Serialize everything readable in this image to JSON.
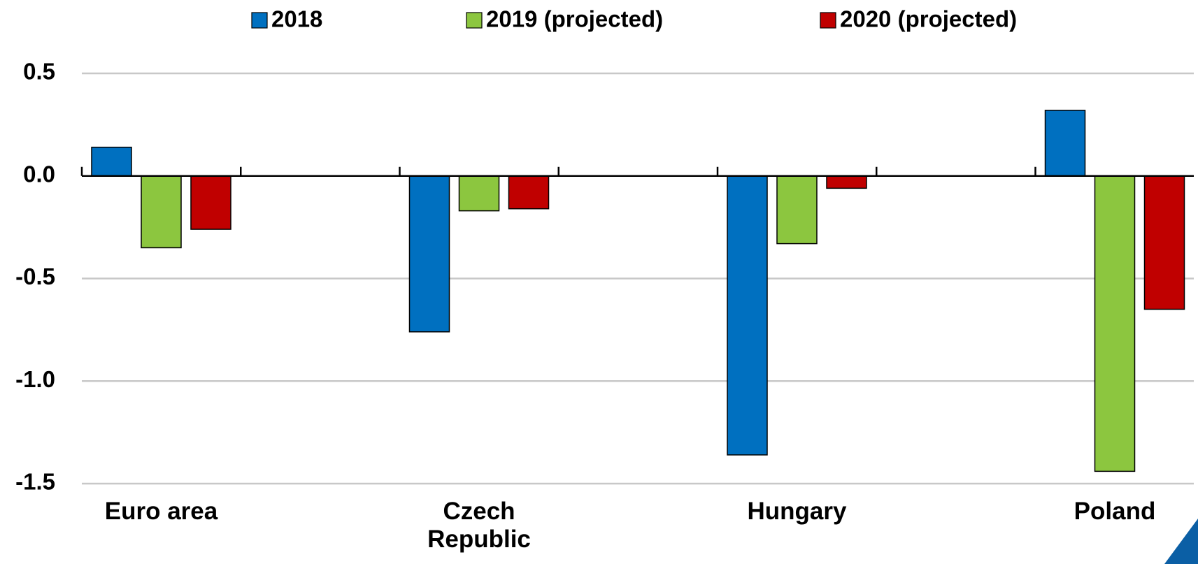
{
  "chart_data": {
    "type": "bar",
    "categories": [
      "Euro area",
      "Czech Republic",
      "Hungary",
      "Poland"
    ],
    "series": [
      {
        "name": "2018",
        "color": "#0070c0",
        "values": [
          0.14,
          -0.76,
          -1.36,
          0.32
        ]
      },
      {
        "name": "2019 (projected)",
        "color": "#8cc63f",
        "values": [
          -0.35,
          -0.17,
          -0.33,
          -1.44
        ]
      },
      {
        "name": "2020 (projected)",
        "color": "#c00000",
        "values": [
          -0.26,
          -0.16,
          -0.06,
          -0.65
        ]
      }
    ],
    "ylim": [
      -1.5,
      0.5
    ],
    "yticks": [
      -1.5,
      {
        "value": -1.0,
        "label": "-1.0"
      },
      -0.5,
      {
        "value": 0.0,
        "label": "0.0"
      },
      0.5
    ],
    "grid": true,
    "legend": "top"
  }
}
